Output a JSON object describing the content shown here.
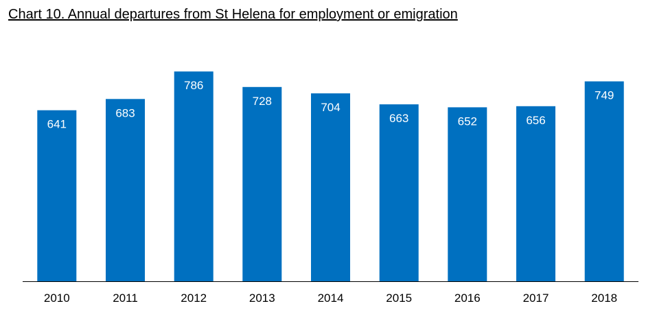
{
  "chart_data": {
    "type": "bar",
    "title": "Chart 10. Annual departures from St Helena for employment or emigration",
    "categories": [
      "2010",
      "2011",
      "2012",
      "2013",
      "2014",
      "2015",
      "2016",
      "2017",
      "2018"
    ],
    "values": [
      641,
      683,
      786,
      728,
      704,
      663,
      652,
      656,
      749
    ],
    "xlabel": "",
    "ylabel": "",
    "ylim": [
      0,
      820
    ],
    "grid": false,
    "legend": "none",
    "bar_color": "#0070C0",
    "data_labels": "inside-top"
  }
}
